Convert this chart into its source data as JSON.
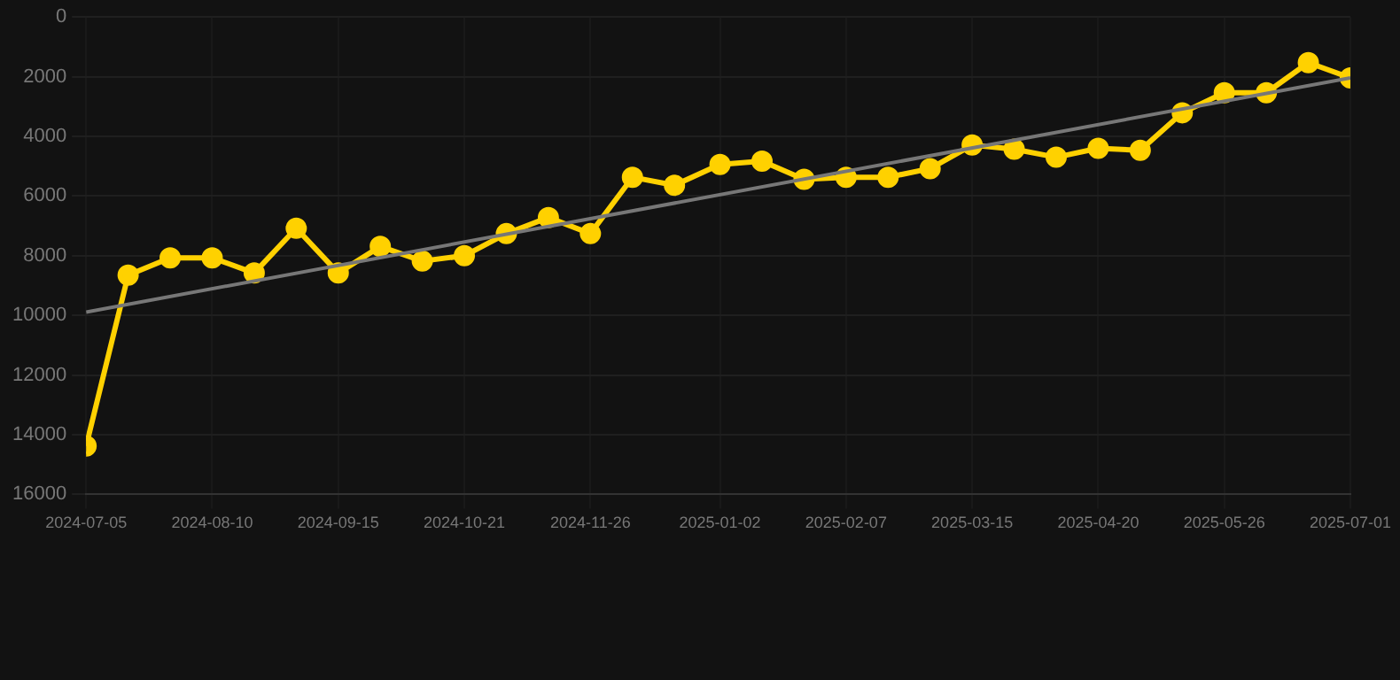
{
  "chart_data": {
    "type": "line",
    "x": [
      "2024-07-05",
      "2024-07-17",
      "2024-07-29",
      "2024-08-10",
      "2024-08-22",
      "2024-09-03",
      "2024-09-15",
      "2024-09-27",
      "2024-10-09",
      "2024-10-21",
      "2024-11-02",
      "2024-11-14",
      "2024-11-26",
      "2024-12-08",
      "2024-12-20",
      "2025-01-02",
      "2025-01-14",
      "2025-01-26",
      "2025-02-07",
      "2025-02-19",
      "2025-03-03",
      "2025-03-15",
      "2025-03-27",
      "2025-04-08",
      "2025-04-20",
      "2025-05-02",
      "2025-05-14",
      "2025-05-26",
      "2025-06-07",
      "2025-06-19",
      "2025-07-01"
    ],
    "series": [
      {
        "color": "#ffd100",
        "marker": "circle",
        "values": [
          14380,
          8650,
          8070,
          8070,
          8580,
          7080,
          8580,
          7690,
          8180,
          8000,
          7260,
          6720,
          7260,
          5370,
          5640,
          4940,
          4830,
          5440,
          5370,
          5370,
          5080,
          4290,
          4430,
          4700,
          4400,
          4470,
          3210,
          2540,
          2540,
          1530,
          2040
        ]
      },
      {
        "type": "line",
        "color": "#777777",
        "marker": "none",
        "x": [
          "2024-07-05",
          "2025-07-01"
        ],
        "values": [
          9890,
          2040
        ]
      }
    ],
    "xlim": [
      "2024-07-05",
      "2025-07-01"
    ],
    "xticks": [
      "2024-07-05",
      "2024-08-10",
      "2024-09-15",
      "2024-10-21",
      "2024-11-26",
      "2025-01-02",
      "2025-02-07",
      "2025-03-15",
      "2025-04-20",
      "2025-05-26",
      "2025-07-01"
    ],
    "ylim": [
      16000,
      0
    ],
    "yticks": [
      0,
      2000,
      4000,
      6000,
      8000,
      10000,
      12000,
      14000,
      16000
    ],
    "grid": true
  }
}
